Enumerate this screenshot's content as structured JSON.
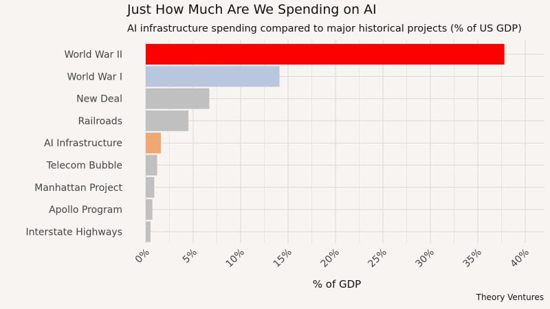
{
  "chart_data": {
    "type": "bar",
    "orientation": "horizontal",
    "title": "Just How Much Are We Spending on AI",
    "subtitle": "AI infrastructure spending compared to major historical projects (% of US GDP)",
    "xlabel": "% of GDP",
    "ylabel": "",
    "xlim": [
      0,
      41
    ],
    "xticks": [
      0,
      5,
      10,
      15,
      20,
      25,
      30,
      35,
      40
    ],
    "xtick_labels": [
      "0%",
      "5%",
      "10%",
      "15%",
      "20%",
      "25%",
      "30%",
      "35%",
      "40%"
    ],
    "categories": [
      "World War II",
      "World War I",
      "New Deal",
      "Railroads",
      "AI Infrastructure",
      "Telecom Bubble",
      "Manhattan Project",
      "Apollo Program",
      "Interstate Highways"
    ],
    "values": [
      37.8,
      14.1,
      6.7,
      4.5,
      1.6,
      1.2,
      0.9,
      0.7,
      0.5
    ],
    "colors": [
      "#ff0000",
      "#b8c7dd",
      "#c0c0c0",
      "#c0c0c0",
      "#f0a870",
      "#c0c0c0",
      "#c0c0c0",
      "#c0c0c0",
      "#c0c0c0"
    ],
    "grid": true,
    "source": "Theory Ventures"
  }
}
